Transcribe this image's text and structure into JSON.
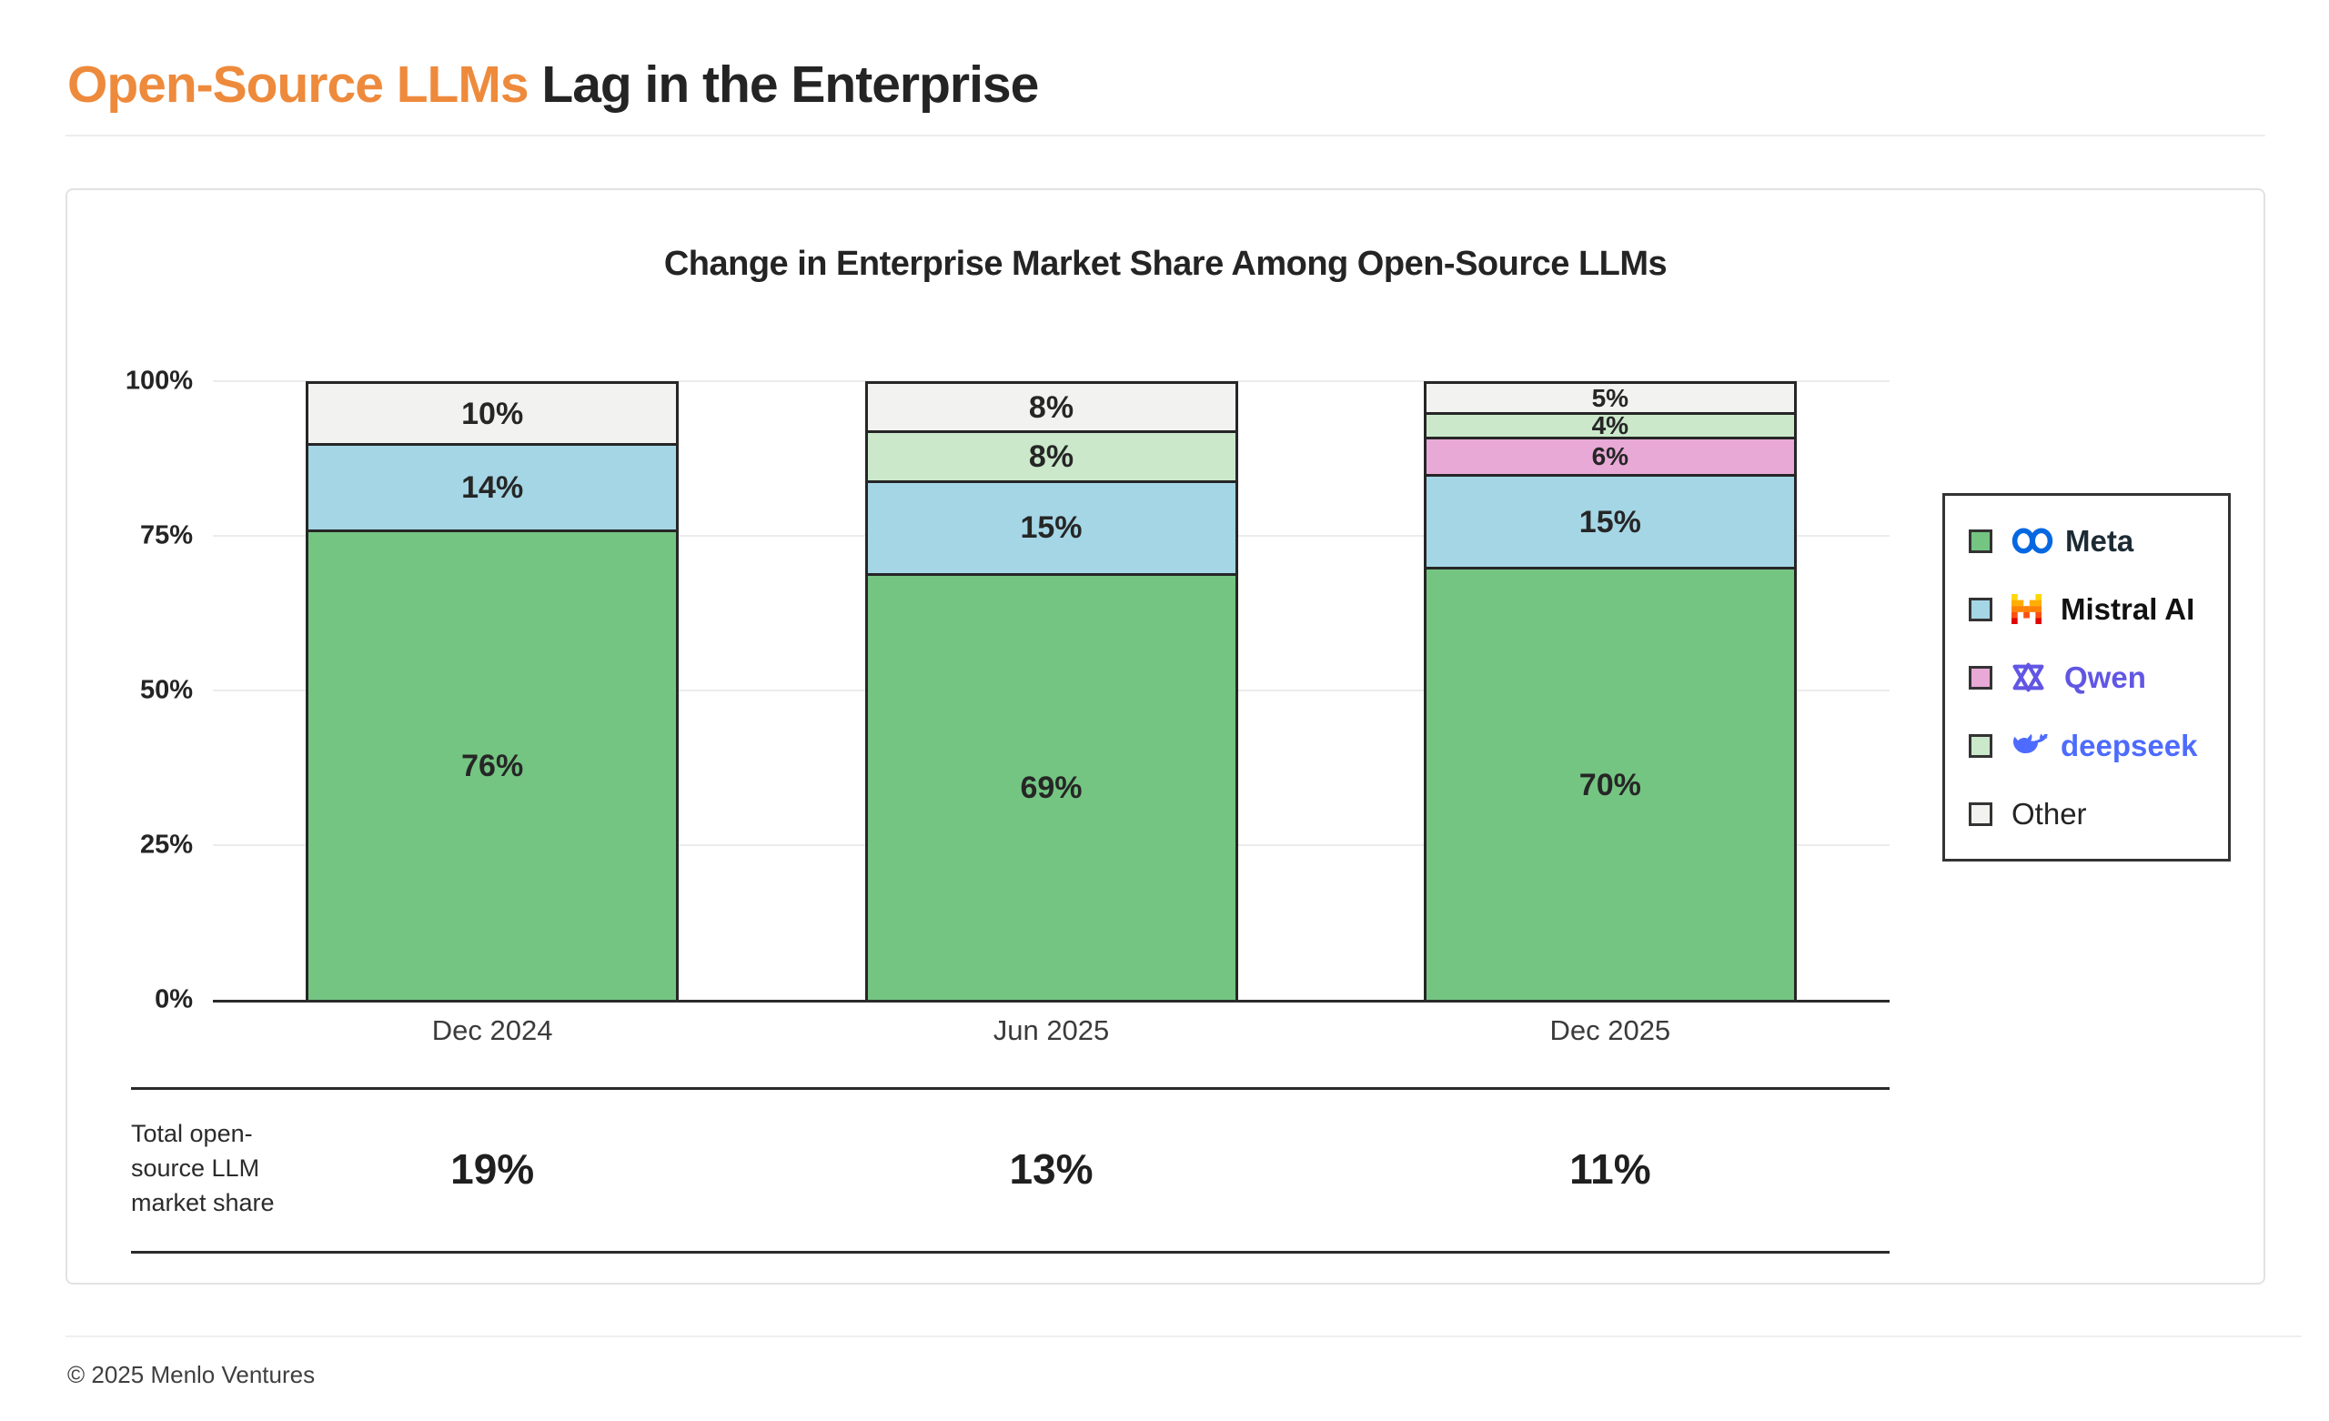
{
  "page": {
    "title_highlight": "Open-Source LLMs",
    "title_rest": " Lag in the Enterprise",
    "footer": "© 2025 Menlo Ventures",
    "accent_color": "#EE8A3C"
  },
  "chart_data": {
    "type": "bar",
    "variant": "stacked-percent",
    "title": "Change in Enterprise Market Share Among Open-Source LLMs",
    "categories": [
      "Dec 2024",
      "Jun 2025",
      "Dec 2025"
    ],
    "series": [
      {
        "name": "Meta",
        "color": "#74C582",
        "values": [
          76,
          69,
          70
        ]
      },
      {
        "name": "Mistral AI",
        "color": "#A5D6E6",
        "values": [
          14,
          15,
          15
        ]
      },
      {
        "name": "Qwen",
        "color": "#E8A9D6",
        "values": [
          0,
          0,
          6
        ]
      },
      {
        "name": "deepseek",
        "color": "#CBE8CB",
        "values": [
          0,
          8,
          4
        ]
      },
      {
        "name": "Other",
        "color": "#F2F2F1",
        "values": [
          10,
          8,
          5
        ]
      }
    ],
    "segment_labels": {
      "Dec 2024": {
        "Meta": "76%",
        "Mistral AI": "14%",
        "Other": "10%"
      },
      "Jun 2025": {
        "Meta": "69%",
        "Mistral AI": "15%",
        "deepseek": "8%",
        "Other": "8%"
      },
      "Dec 2025": {
        "Meta": "70%",
        "Mistral AI": "15%",
        "Qwen": "6%",
        "deepseek": "4%",
        "Other": "5%"
      }
    },
    "y_ticks": [
      "100%",
      "75%",
      "50%",
      "25%",
      "0%"
    ],
    "ylim": [
      0,
      100
    ],
    "grid": true,
    "legend_position": "right",
    "totals_row": {
      "label": "Total open-source LLM market share",
      "values": [
        "19%",
        "13%",
        "11%"
      ]
    }
  },
  "legend": {
    "items": [
      {
        "label": "Meta",
        "swatch": "#74C582",
        "logo": "meta-infinity-icon",
        "text_color": "#1C2B33",
        "logo_color": "#0668E1"
      },
      {
        "label": "Mistral AI",
        "swatch": "#A5D6E6",
        "logo": "mistral-pixel-m-icon",
        "text_color": "#111111",
        "logo_color": "#FF8205"
      },
      {
        "label": "Qwen",
        "swatch": "#E8A9D6",
        "logo": "qwen-star-icon",
        "text_color": "#6156E4",
        "logo_color": "#6156E4"
      },
      {
        "label": "deepseek",
        "swatch": "#CBE8CB",
        "logo": "deepseek-whale-icon",
        "text_color": "#4D6BFE",
        "logo_color": "#4D6BFE"
      },
      {
        "label": "Other",
        "swatch": "#F2F2F1",
        "logo": null,
        "text_color": "#242424",
        "logo_color": null
      }
    ]
  }
}
